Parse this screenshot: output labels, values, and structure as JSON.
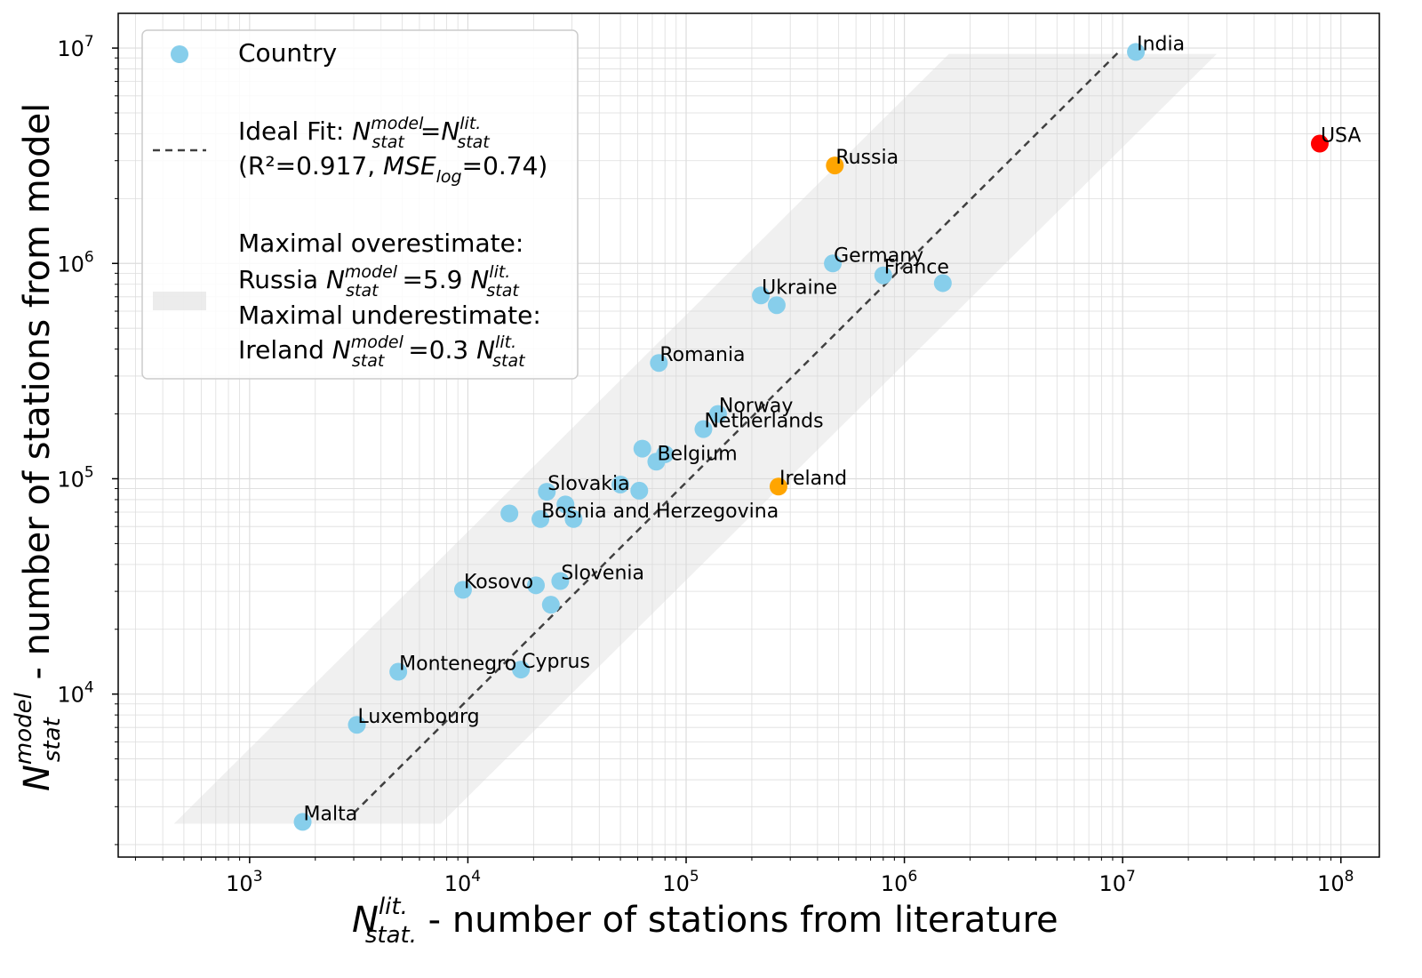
{
  "chart_data": {
    "type": "scatter",
    "scale": {
      "x": "log",
      "y": "log"
    },
    "xlim": [
      250,
      150000000
    ],
    "ylim": [
      1750,
      14500000
    ],
    "grid": true,
    "x_ticks": [
      {
        "value": 1000,
        "base": "10",
        "exp": "3"
      },
      {
        "value": 10000,
        "base": "10",
        "exp": "4"
      },
      {
        "value": 100000,
        "base": "10",
        "exp": "5"
      },
      {
        "value": 1000000,
        "base": "10",
        "exp": "6"
      },
      {
        "value": 10000000,
        "base": "10",
        "exp": "7"
      },
      {
        "value": 100000000,
        "base": "10",
        "exp": "8"
      }
    ],
    "y_ticks": [
      {
        "value": 10000,
        "base": "10",
        "exp": "4"
      },
      {
        "value": 100000,
        "base": "10",
        "exp": "5"
      },
      {
        "value": 1000000,
        "base": "10",
        "exp": "6"
      },
      {
        "value": 10000000,
        "base": "10",
        "exp": "7"
      }
    ],
    "xlabel": {
      "symbol": "N",
      "sup": "lit.",
      "sub": "stat.",
      "text": " - number of stations from literature"
    },
    "ylabel": {
      "symbol": "N",
      "sup": "model",
      "sub": "stat",
      "text": " - number of stations from model"
    },
    "ideal_fit": {
      "x": [
        3000,
        9500000
      ],
      "y": [
        2800,
        9500000
      ]
    },
    "band": {
      "upper": {
        "x": [
          450,
          1600000
        ],
        "y": [
          2500,
          9400000
        ]
      },
      "lower": {
        "x": [
          7500,
          27000000
        ],
        "y": [
          2500,
          9400000
        ]
      }
    },
    "points": [
      {
        "name": "India",
        "label": "India",
        "x": 11500000,
        "y": 9600000,
        "color": "#87ceeb"
      },
      {
        "name": "USA",
        "label": "USA",
        "x": 80000000,
        "y": 3600000,
        "color": "#ff0000"
      },
      {
        "name": "Russia",
        "label": "Russia",
        "x": 480000,
        "y": 2850000,
        "color": "#ffa500"
      },
      {
        "name": "Germany",
        "label": "Germany",
        "x": 470000,
        "y": 1000000,
        "color": "#87ceeb"
      },
      {
        "name": "France",
        "label": "France",
        "x": 800000,
        "y": 880000,
        "color": "#87ceeb"
      },
      {
        "name": "unlabeled-1",
        "label": "",
        "x": 1500000,
        "y": 810000,
        "color": "#87ceeb"
      },
      {
        "name": "Ukraine",
        "label": "Ukraine",
        "x": 220000,
        "y": 710000,
        "color": "#87ceeb"
      },
      {
        "name": "unlabeled-2",
        "label": "",
        "x": 260000,
        "y": 640000,
        "color": "#87ceeb"
      },
      {
        "name": "Romania",
        "label": "Romania",
        "x": 75000,
        "y": 345000,
        "color": "#87ceeb"
      },
      {
        "name": "Norway",
        "label": "Norway",
        "x": 140000,
        "y": 200000,
        "color": "#87ceeb"
      },
      {
        "name": "Netherlands",
        "label": "Netherlands",
        "x": 120000,
        "y": 170000,
        "color": "#87ceeb"
      },
      {
        "name": "unlabeled-3",
        "label": "",
        "x": 63000,
        "y": 138000,
        "color": "#87ceeb"
      },
      {
        "name": "unlabeled-4",
        "label": "",
        "x": 80000,
        "y": 130000,
        "color": "#87ceeb"
      },
      {
        "name": "Belgium",
        "label": "Belgium",
        "x": 73000,
        "y": 120000,
        "color": "#87ceeb"
      },
      {
        "name": "Ireland",
        "label": "Ireland",
        "x": 265000,
        "y": 92000,
        "color": "#ffa500"
      },
      {
        "name": "unlabeled-5",
        "label": "",
        "x": 50000,
        "y": 94000,
        "color": "#87ceeb"
      },
      {
        "name": "Slovakia",
        "label": "Slovakia",
        "x": 23000,
        "y": 87000,
        "color": "#87ceeb"
      },
      {
        "name": "unlabeled-6",
        "label": "",
        "x": 61000,
        "y": 88000,
        "color": "#87ceeb"
      },
      {
        "name": "unlabeled-7",
        "label": "",
        "x": 28000,
        "y": 76000,
        "color": "#87ceeb"
      },
      {
        "name": "unlabeled-8",
        "label": "",
        "x": 15500,
        "y": 69000,
        "color": "#87ceeb"
      },
      {
        "name": "Bosnia and Herzegovina",
        "label": "Bosnia and Herzegovina",
        "x": 21500,
        "y": 65000,
        "color": "#87ceeb"
      },
      {
        "name": "unlabeled-9",
        "label": "",
        "x": 30500,
        "y": 65000,
        "color": "#87ceeb"
      },
      {
        "name": "Kosovo",
        "label": "Kosovo",
        "x": 9500,
        "y": 30500,
        "color": "#87ceeb"
      },
      {
        "name": "Slovenia",
        "label": "Slovenia",
        "x": 26500,
        "y": 33500,
        "color": "#87ceeb"
      },
      {
        "name": "unlabeled-10",
        "label": "",
        "x": 20500,
        "y": 32000,
        "color": "#87ceeb"
      },
      {
        "name": "unlabeled-11",
        "label": "",
        "x": 24000,
        "y": 26000,
        "color": "#87ceeb"
      },
      {
        "name": "Montenegro",
        "label": "Montenegro",
        "x": 4800,
        "y": 12700,
        "color": "#87ceeb"
      },
      {
        "name": "Cyprus",
        "label": "Cyprus",
        "x": 17500,
        "y": 13000,
        "color": "#87ceeb"
      },
      {
        "name": "Luxembourg",
        "label": "Luxembourg",
        "x": 3100,
        "y": 7200,
        "color": "#87ceeb"
      },
      {
        "name": "Malta",
        "label": "Malta",
        "x": 1750,
        "y": 2550,
        "color": "#87ceeb"
      }
    ],
    "legend": {
      "placement": "upper-left",
      "country": "Country",
      "fit_prefix": "Ideal Fit: ",
      "fit_eq": "=",
      "fit_stats_r2": "(R²=0.917, ",
      "fit_stats_mse": "MSE",
      "fit_stats_mse_sub": "log",
      "fit_stats_end": "=0.74)",
      "over_title": "Maximal overestimate:",
      "over_country": "Russia ",
      "over_value": " =5.9 ",
      "under_title": "Maximal underestimate:",
      "under_country": "Ireland ",
      "under_value": " =0.3 ",
      "sym_N": "N",
      "sub_stat": "stat",
      "sup_model": "model",
      "sup_lit": "lit."
    },
    "colors": {
      "country": "#87ceeb",
      "overestimate": "#ffa500",
      "outlier": "#ff0000",
      "band": "#d9d9d9",
      "fit_line": "#404040"
    }
  }
}
